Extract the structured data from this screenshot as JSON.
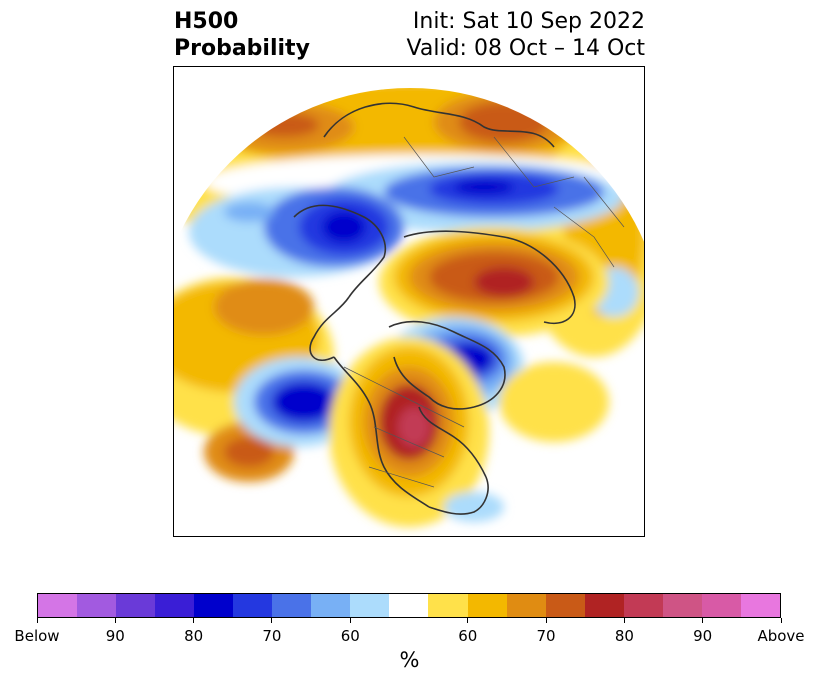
{
  "title": {
    "left_line1": "H500",
    "left_line2": "Probability",
    "right_line1": "Init: Sat 10 Sep 2022",
    "right_line2": "Valid: 08 Oct – 14 Oct"
  },
  "colorbar": {
    "colors": [
      "#d475e6",
      "#a25ae0",
      "#6a3ad8",
      "#3a1ed6",
      "#0000cc",
      "#2438e0",
      "#4a72e8",
      "#78b0f5",
      "#acdcfc",
      "#ffffff",
      "#ffe14a",
      "#f3b800",
      "#e08c12",
      "#c95a17",
      "#b02323",
      "#c23a55",
      "#cf5485",
      "#d85aa6",
      "#e877df"
    ],
    "tick_labels": [
      "Below",
      "90",
      "80",
      "70",
      "60",
      "60",
      "70",
      "80",
      "90",
      "Above"
    ],
    "unit_label": "%"
  },
  "map": {
    "projection": "north-polar-stereographic",
    "field": "H500 probability anomaly",
    "palette": {
      "below_high": "#0000cc",
      "below_mid": "#4a72e8",
      "below_low": "#acdcfc",
      "above_low": "#ffe14a",
      "above_mid": "#e08c12",
      "above_high": "#b02323",
      "above_max": "#c23a55",
      "coastline": "#333333"
    }
  }
}
